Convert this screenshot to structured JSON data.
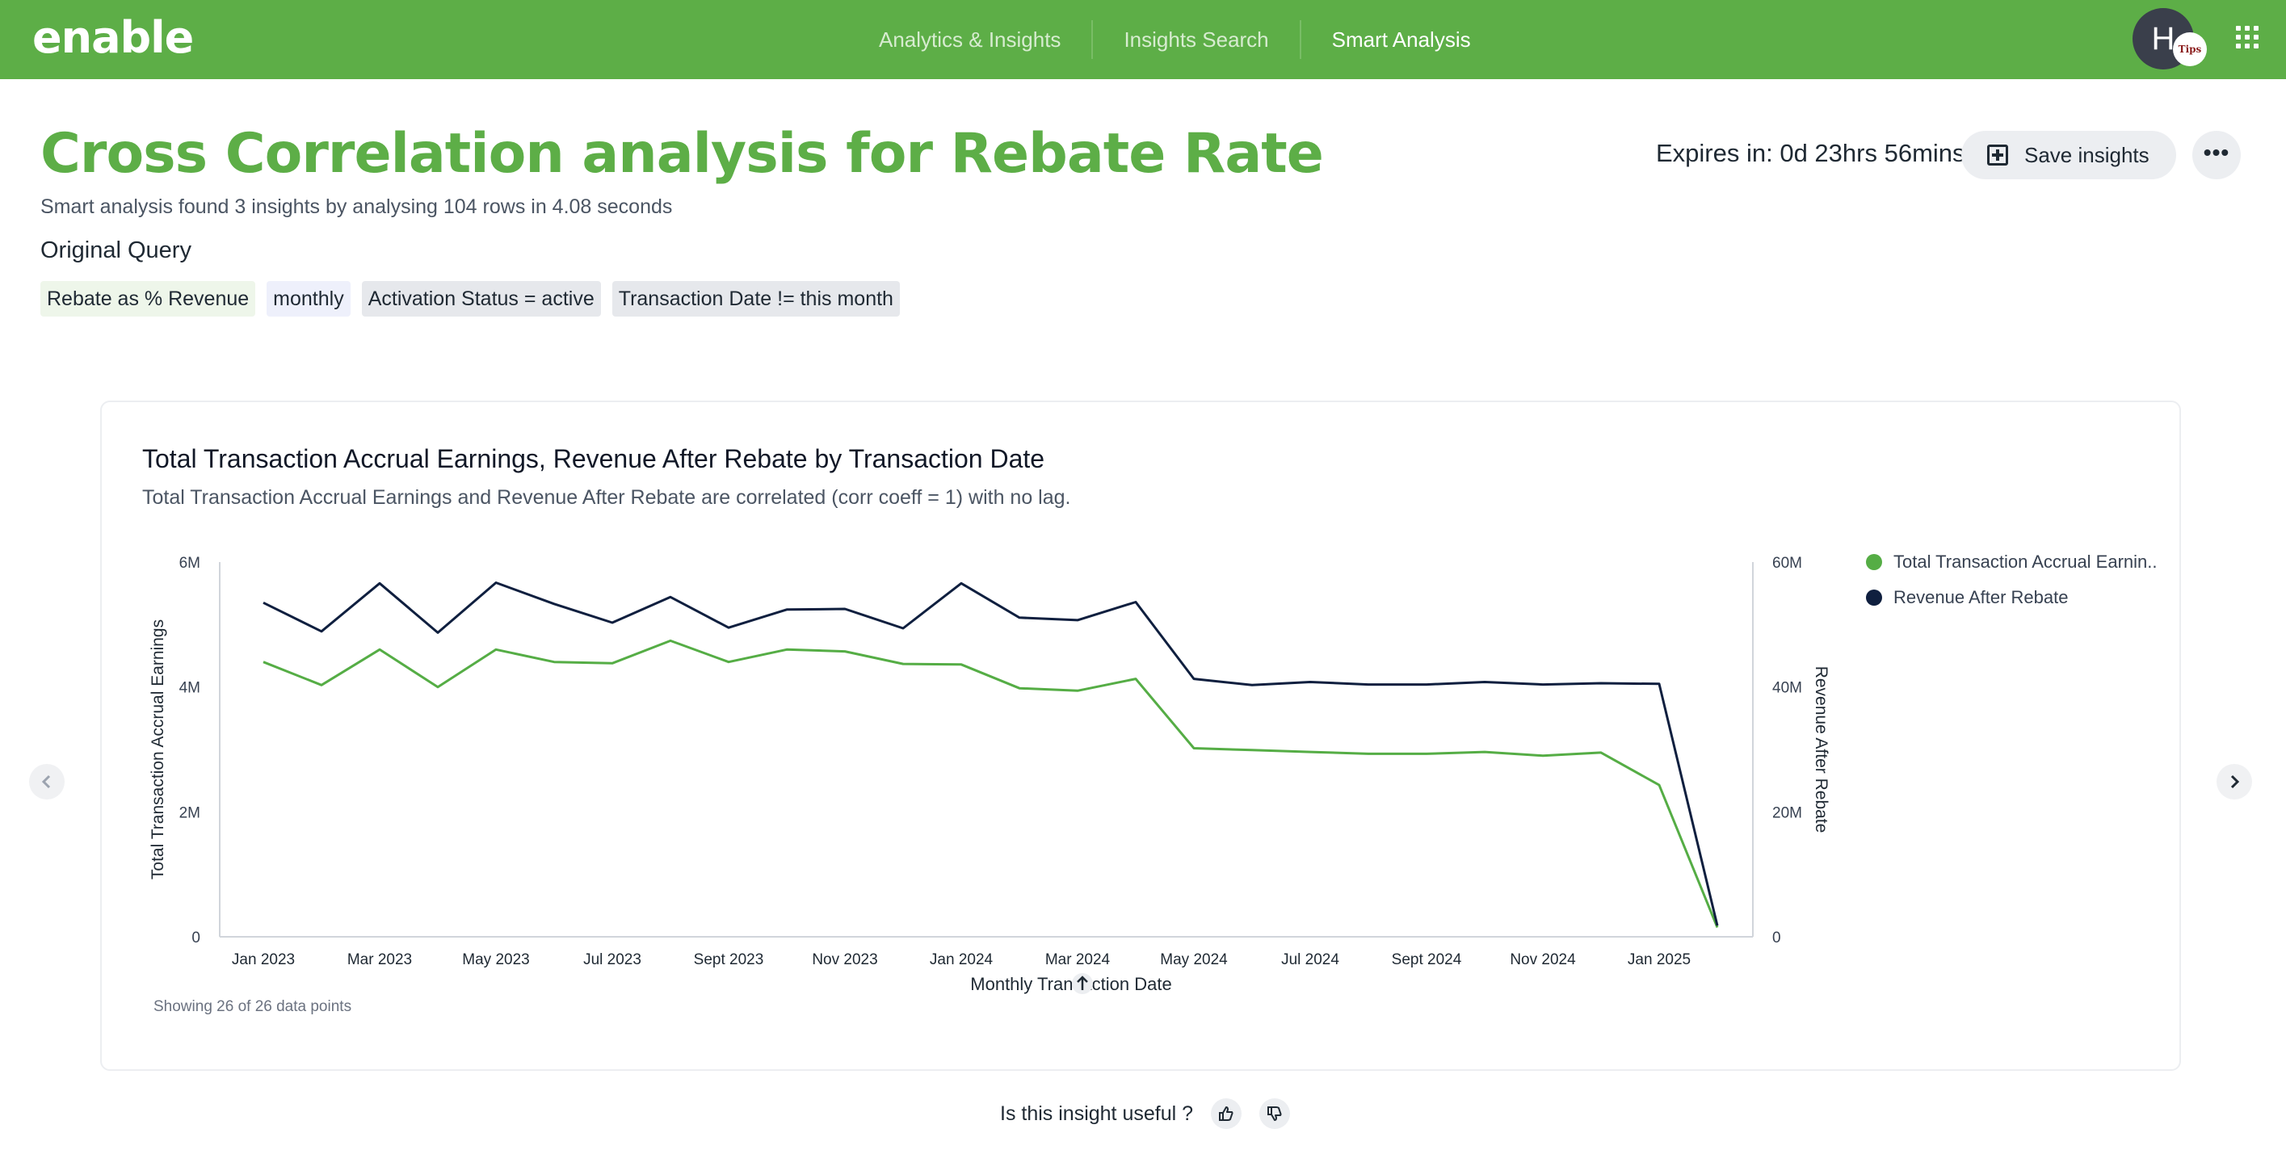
{
  "header": {
    "logo_text": "enable",
    "nav": [
      {
        "label": "Analytics & Insights"
      },
      {
        "label": "Insights Search"
      },
      {
        "label": "Smart Analysis"
      }
    ],
    "avatar_initial": "H",
    "avatar_badge": "Tips"
  },
  "page": {
    "title": "Cross Correlation analysis for Rebate Rate",
    "subtitle": "Smart analysis found 3 insights by analysing 104 rows in 4.08 seconds",
    "original_query_label": "Original Query",
    "chips": [
      "Rebate as % Revenue",
      "monthly",
      "Activation Status = active",
      "Transaction Date != this month"
    ],
    "expires": "Expires in: 0d 23hrs 56mins",
    "save_label": "Save insights",
    "more_label": "•••"
  },
  "card": {
    "showing": "Showing 26 of 26 data points"
  },
  "feedback": {
    "question": "Is this insight useful ?"
  },
  "colors": {
    "brand_green": "#5dae47",
    "series_green": "#55ad45",
    "series_navy": "#0f1f3f"
  },
  "chart_data": {
    "type": "line",
    "title": "Total Transaction Accrual Earnings, Revenue After Rebate by Transaction Date",
    "subtitle": "Total Transaction Accrual Earnings and Revenue After Rebate are correlated (corr coeff = 1) with no lag.",
    "xlabel": "Monthly Transaction Date",
    "ylabel_left": "Total Transaction Accrual Earnings",
    "ylabel_right": "Revenue After Rebate",
    "x": [
      "Jan 2023",
      "Feb 2023",
      "Mar 2023",
      "Apr 2023",
      "May 2023",
      "Jun 2023",
      "Jul 2023",
      "Aug 2023",
      "Sept 2023",
      "Oct 2023",
      "Nov 2023",
      "Dec 2023",
      "Jan 2024",
      "Feb 2024",
      "Mar 2024",
      "Apr 2024",
      "May 2024",
      "Jun 2024",
      "Jul 2024",
      "Aug 2024",
      "Sept 2024",
      "Oct 2024",
      "Nov 2024",
      "Dec 2024",
      "Jan 2025",
      "Feb 2025"
    ],
    "x_tick_labels": [
      "Jan 2023",
      "Mar 2023",
      "May 2023",
      "Jul 2023",
      "Sept 2023",
      "Nov 2023",
      "Jan 2024",
      "Mar 2024",
      "May 2024",
      "Jul 2024",
      "Sept 2024",
      "Nov 2024",
      "Jan 2025"
    ],
    "y_left_ticks": [
      "0",
      "2M",
      "4M",
      "6M"
    ],
    "y_right_ticks": [
      "0",
      "20M",
      "40M",
      "60M"
    ],
    "ylim_left": [
      0,
      6000000
    ],
    "ylim_right": [
      0,
      60000000
    ],
    "series": [
      {
        "name": "Total Transaction Accrual Earnings",
        "legend_label": "Total Transaction Accrual Earnin..",
        "axis": "left",
        "color": "#55ad45",
        "values": [
          4400000,
          4030000,
          4600000,
          4000000,
          4600000,
          4400000,
          4380000,
          4740000,
          4400000,
          4600000,
          4570000,
          4370000,
          4360000,
          3980000,
          3940000,
          4130000,
          3020000,
          2990000,
          2960000,
          2930000,
          2930000,
          2960000,
          2900000,
          2950000,
          2430000,
          150000
        ]
      },
      {
        "name": "Revenue After Rebate",
        "legend_label": "Revenue After Rebate",
        "axis": "right",
        "color": "#0f1f3f",
        "values": [
          53500000,
          48900000,
          56600000,
          48700000,
          56700000,
          53300000,
          50300000,
          54400000,
          49500000,
          52400000,
          52500000,
          49400000,
          56600000,
          51100000,
          50700000,
          53600000,
          41300000,
          40300000,
          40800000,
          40400000,
          40400000,
          40800000,
          40400000,
          40600000,
          40500000,
          1800000
        ]
      }
    ],
    "legend_position": "top-right",
    "grid": false
  }
}
